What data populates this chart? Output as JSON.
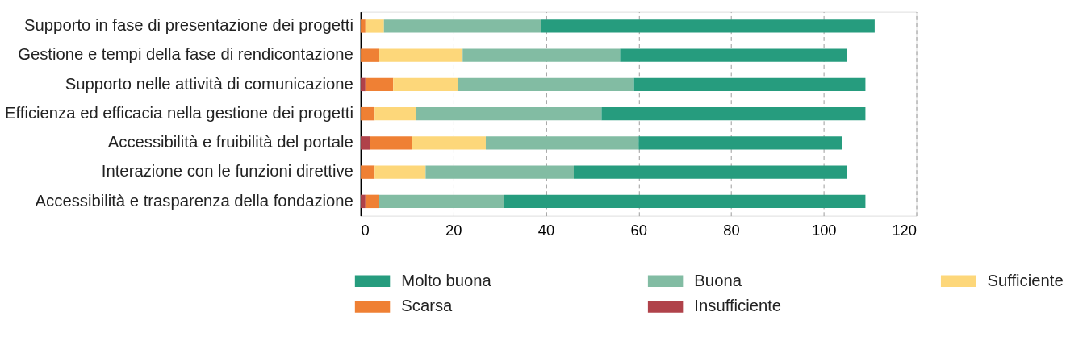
{
  "chart_data": {
    "type": "bar",
    "orientation": "horizontal",
    "stacked": true,
    "categories": [
      "Supporto in fase di presentazione dei progetti",
      "Gestione e tempi della fase di rendicontazione",
      "Supporto nelle attività di comunicazione",
      "Efficienza ed efficacia nella gestione dei progetti",
      "Accessibilità e fruibilità del portale",
      "Interazione con le funzioni direttive",
      "Accessibilità e trasparenza della fondazione"
    ],
    "series": [
      {
        "name": "Insufficiente",
        "color": "#b0424a",
        "values": [
          0,
          0,
          1,
          0,
          2,
          0,
          1
        ]
      },
      {
        "name": "Scarsa",
        "color": "#ef8034",
        "values": [
          1,
          4,
          6,
          3,
          9,
          3,
          3
        ]
      },
      {
        "name": "Sufficiente",
        "color": "#fdd77a",
        "values": [
          4,
          18,
          14,
          9,
          16,
          11,
          0
        ]
      },
      {
        "name": "Buona",
        "color": "#82bca3",
        "values": [
          34,
          34,
          38,
          40,
          33,
          32,
          27
        ]
      },
      {
        "name": "Molto buona",
        "color": "#269c7e",
        "values": [
          72,
          49,
          50,
          57,
          44,
          59,
          78
        ]
      }
    ],
    "xlim": [
      0,
      120
    ],
    "xticks": [
      0,
      20,
      40,
      60,
      80,
      100,
      120
    ],
    "grid": "x",
    "legend": "bottom"
  }
}
